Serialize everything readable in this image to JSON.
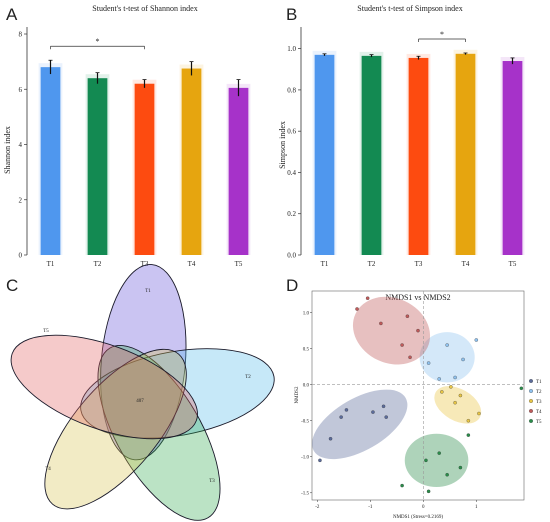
{
  "panel_letters": [
    "A",
    "B",
    "C",
    "D"
  ],
  "chart_data": [
    {
      "type": "bar",
      "title": "Student's t-test of Shannon index",
      "xlabel": "",
      "ylabel": "Shannon index",
      "categories": [
        "T1",
        "T2",
        "T3",
        "T4",
        "T5"
      ],
      "values": [
        6.8,
        6.4,
        6.2,
        6.75,
        6.05
      ],
      "errors": [
        0.25,
        0.2,
        0.15,
        0.25,
        0.3
      ],
      "colors": [
        "#4f97ee",
        "#138a52",
        "#fd4b10",
        "#e6a50f",
        "#a632c9"
      ],
      "ylim": [
        0,
        8
      ],
      "yticks": [
        "0",
        "2",
        "4",
        "6",
        "8"
      ],
      "significance": [
        {
          "from": "T1",
          "to": "T3",
          "label": "*"
        }
      ]
    },
    {
      "type": "bar",
      "title": "Student's t-test of Simpson index",
      "xlabel": "",
      "ylabel": "Simpson index",
      "categories": [
        "T1",
        "T2",
        "T3",
        "T4",
        "T5"
      ],
      "values": [
        0.97,
        0.965,
        0.955,
        0.975,
        0.94
      ],
      "errors": [
        0.005,
        0.006,
        0.008,
        0.004,
        0.015
      ],
      "colors": [
        "#4f97ee",
        "#138a52",
        "#fd4b10",
        "#e6a50f",
        "#a632c9"
      ],
      "ylim": [
        0,
        1.1
      ],
      "yticks": [
        "0.0",
        "0.2",
        "0.4",
        "0.6",
        "0.8",
        "1.0"
      ],
      "significance": [
        {
          "from": "T3",
          "to": "T4",
          "label": "*"
        }
      ]
    },
    {
      "type": "venn",
      "sets": [
        {
          "name": "T1",
          "color": "#5a46d8"
        },
        {
          "name": "T2",
          "color": "#4fb8e8"
        },
        {
          "name": "T3",
          "color": "#2aa84a"
        },
        {
          "name": "T4",
          "color": "#d8c24a"
        },
        {
          "name": "T5",
          "color": "#e05a5a"
        }
      ],
      "center_value": "407"
    },
    {
      "type": "scatter",
      "title": "NMDS1 vs NMDS2",
      "xlabel": "NMDS1 (Stress=0.2169)",
      "ylabel": "NMDS2",
      "xlim": [
        -2.1,
        1.9
      ],
      "ylim": [
        -1.6,
        1.3
      ],
      "xticks": [
        -2,
        -1,
        0,
        1
      ],
      "yticks": [
        -1.5,
        -1.0,
        -0.5,
        0.0,
        0.5,
        1.0
      ],
      "series": [
        {
          "name": "T1",
          "color": "#5b6b9a",
          "points": [
            [
              -1.45,
              -0.35
            ],
            [
              -1.75,
              -0.75
            ],
            [
              -1.55,
              -0.45
            ],
            [
              -0.95,
              -0.38
            ],
            [
              -0.7,
              -0.45
            ],
            [
              -0.75,
              -0.3
            ],
            [
              -1.95,
              -1.05
            ]
          ],
          "ellipse": {
            "cx": -1.2,
            "cy": -0.55,
            "rx": 1.0,
            "ry": 0.36,
            "angle": 30
          }
        },
        {
          "name": "T2",
          "color": "#8fc2ef",
          "points": [
            [
              0.1,
              0.3
            ],
            [
              0.45,
              0.55
            ],
            [
              0.75,
              0.35
            ],
            [
              1.0,
              0.62
            ],
            [
              0.3,
              0.08
            ],
            [
              0.6,
              0.1
            ]
          ],
          "ellipse": {
            "cx": 0.45,
            "cy": 0.38,
            "rx": 0.52,
            "ry": 0.35,
            "angle": 0
          }
        },
        {
          "name": "T3",
          "color": "#e9c645",
          "points": [
            [
              0.35,
              -0.1
            ],
            [
              0.7,
              -0.15
            ],
            [
              0.85,
              -0.5
            ],
            [
              1.05,
              -0.4
            ],
            [
              0.6,
              -0.25
            ],
            [
              0.52,
              -0.03
            ]
          ],
          "ellipse": {
            "cx": 0.65,
            "cy": -0.28,
            "rx": 0.48,
            "ry": 0.22,
            "angle": -30
          }
        },
        {
          "name": "T4",
          "color": "#bf5a5a",
          "points": [
            [
              -1.25,
              1.05
            ],
            [
              -0.8,
              0.85
            ],
            [
              -0.4,
              0.55
            ],
            [
              -0.25,
              0.38
            ],
            [
              -0.1,
              0.75
            ],
            [
              -0.3,
              0.95
            ],
            [
              -1.05,
              1.2
            ]
          ],
          "ellipse": {
            "cx": -0.6,
            "cy": 0.75,
            "rx": 0.75,
            "ry": 0.45,
            "angle": -25
          }
        },
        {
          "name": "T5",
          "color": "#2a8c4a",
          "points": [
            [
              0.05,
              -1.05
            ],
            [
              0.3,
              -0.95
            ],
            [
              0.45,
              -1.25
            ],
            [
              0.7,
              -1.15
            ],
            [
              -0.4,
              -1.4
            ],
            [
              0.1,
              -1.48
            ],
            [
              0.85,
              -0.7
            ],
            [
              1.85,
              -0.05
            ]
          ],
          "ellipse": {
            "cx": 0.25,
            "cy": -1.05,
            "rx": 0.6,
            "ry": 0.37,
            "angle": 0
          }
        }
      ],
      "legend_position": "right"
    }
  ]
}
